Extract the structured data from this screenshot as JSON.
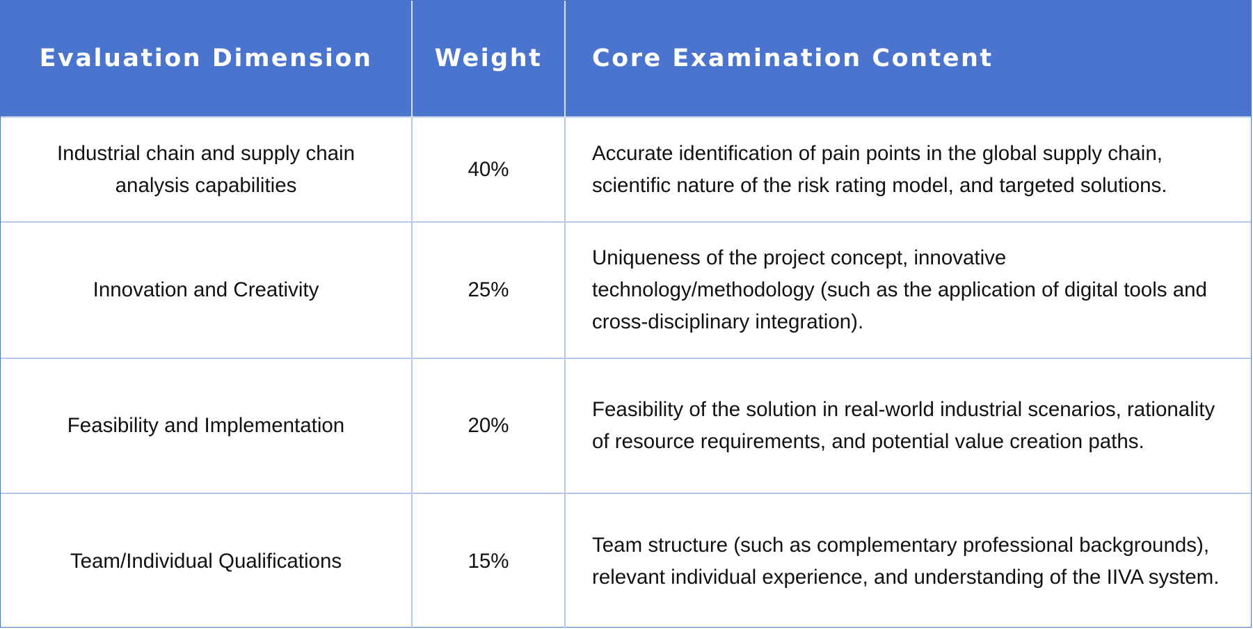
{
  "table": {
    "headers": [
      "Evaluation Dimension",
      "Weight",
      "Core Examination Content"
    ],
    "rows": [
      {
        "dimension": "Industrial chain and supply chain analysis capabilities",
        "weight": "40%",
        "content": "Accurate identification of pain points in the global supply chain, scientific nature of the risk rating model, and targeted solutions."
      },
      {
        "dimension": "Innovation and Creativity",
        "weight": "25%",
        "content": "Uniqueness of the project concept, innovative technology/methodology (such as the application of digital tools and cross-disciplinary integration)."
      },
      {
        "dimension": "Feasibility and Implementation",
        "weight": "20%",
        "content": "Feasibility of the solution in real-world industrial scenarios, rationality of resource requirements, and potential value creation paths."
      },
      {
        "dimension": "Team/Individual Qualifications",
        "weight": "15%",
        "content": "Team structure (such as complementary professional backgrounds), relevant individual experience, and understanding of the IIVA system."
      }
    ]
  },
  "colors": {
    "header_bg": "#4a74cd",
    "header_text": "#ffffff",
    "grid_line": "#b7c8e8"
  }
}
